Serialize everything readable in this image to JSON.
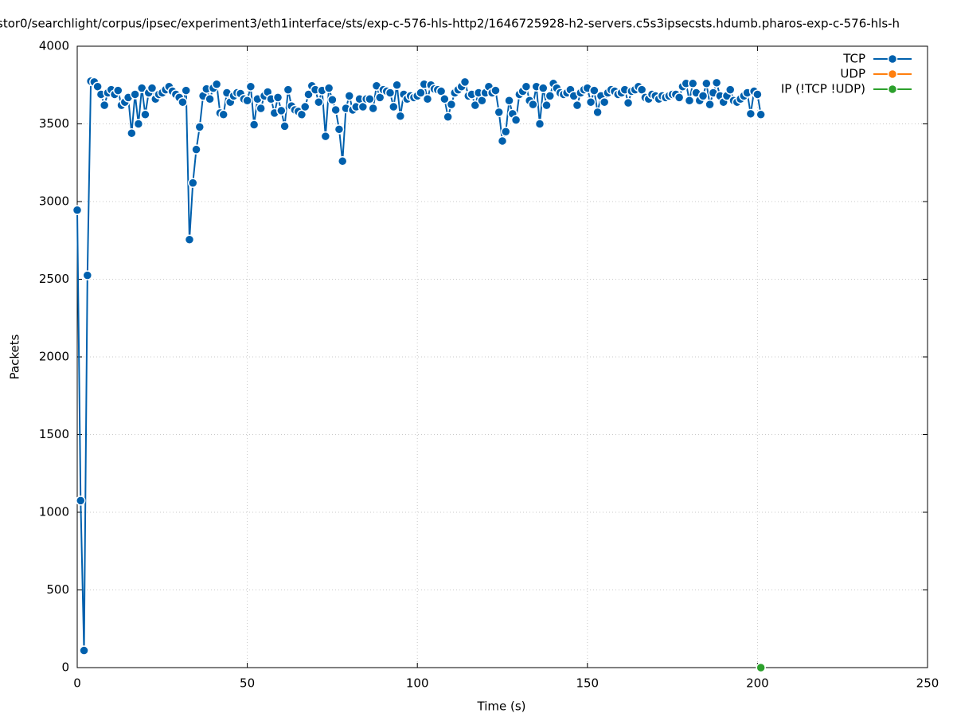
{
  "chart_data": {
    "type": "line",
    "title": "stor0/searchlight/corpus/ipsec/experiment3/eth1interface/sts/exp-c-576-hls-http2/1646725928-h2-servers.c5s3ipsecsts.hdumb.pharos-exp-c-576-hls-h",
    "x_label": "Time (s)",
    "y_label": "Packets",
    "xlim": [
      0,
      250
    ],
    "xticks": [
      0,
      50,
      100,
      150,
      200,
      250
    ],
    "ylim": [
      0,
      4000
    ],
    "yticks": [
      0,
      500,
      1000,
      1500,
      2000,
      2500,
      3000,
      3500,
      4000
    ],
    "grid": true,
    "legend": "top-right",
    "series": [
      {
        "name": "TCP",
        "color": "#0060ad",
        "x": [
          0,
          1,
          2,
          3,
          4,
          5,
          6,
          7,
          8,
          9,
          10,
          11,
          12,
          13,
          14,
          15,
          16,
          17,
          18,
          19,
          20,
          21,
          22,
          23,
          24,
          25,
          26,
          27,
          28,
          29,
          30,
          31,
          32,
          33,
          34,
          35,
          36,
          37,
          38,
          39,
          40,
          41,
          42,
          43,
          44,
          45,
          46,
          47,
          48,
          49,
          50,
          51,
          52,
          53,
          54,
          55,
          56,
          57,
          58,
          59,
          60,
          61,
          62,
          63,
          64,
          65,
          66,
          67,
          68,
          69,
          70,
          71,
          72,
          73,
          74,
          75,
          76,
          77,
          78,
          79,
          80,
          81,
          82,
          83,
          84,
          85,
          86,
          87,
          88,
          89,
          90,
          91,
          92,
          93,
          94,
          95,
          96,
          97,
          98,
          99,
          100,
          101,
          102,
          103,
          104,
          105,
          106,
          107,
          108,
          109,
          110,
          111,
          112,
          113,
          114,
          115,
          116,
          117,
          118,
          119,
          120,
          121,
          122,
          123,
          124,
          125,
          126,
          127,
          128,
          129,
          130,
          131,
          132,
          133,
          134,
          135,
          136,
          137,
          138,
          139,
          140,
          141,
          142,
          143,
          144,
          145,
          146,
          147,
          148,
          149,
          150,
          151,
          152,
          153,
          154,
          155,
          156,
          157,
          158,
          159,
          160,
          161,
          162,
          163,
          164,
          165,
          166,
          167,
          168,
          169,
          170,
          171,
          172,
          173,
          174,
          175,
          176,
          177,
          178,
          179,
          180,
          181,
          182,
          183,
          184,
          185,
          186,
          187,
          188,
          189,
          190,
          191,
          192,
          193,
          194,
          195,
          196,
          197,
          198,
          199,
          200,
          201
        ],
        "values": [
          2945,
          1075,
          110,
          2525,
          3775,
          3770,
          3740,
          3690,
          3620,
          3700,
          3720,
          3690,
          3715,
          3620,
          3640,
          3670,
          3440,
          3690,
          3500,
          3730,
          3560,
          3700,
          3730,
          3660,
          3690,
          3700,
          3720,
          3740,
          3710,
          3690,
          3670,
          3640,
          3715,
          2755,
          3120,
          3335,
          3480,
          3680,
          3725,
          3660,
          3730,
          3755,
          3570,
          3560,
          3700,
          3640,
          3680,
          3700,
          3695,
          3660,
          3650,
          3740,
          3495,
          3660,
          3600,
          3680,
          3705,
          3660,
          3570,
          3670,
          3585,
          3485,
          3720,
          3615,
          3590,
          3580,
          3560,
          3610,
          3690,
          3745,
          3720,
          3640,
          3715,
          3420,
          3730,
          3655,
          3590,
          3465,
          3260,
          3600,
          3680,
          3590,
          3610,
          3660,
          3610,
          3660,
          3660,
          3600,
          3745,
          3670,
          3720,
          3710,
          3700,
          3610,
          3750,
          3550,
          3690,
          3660,
          3680,
          3670,
          3680,
          3700,
          3755,
          3660,
          3750,
          3725,
          3720,
          3710,
          3660,
          3545,
          3625,
          3700,
          3720,
          3740,
          3770,
          3680,
          3690,
          3620,
          3700,
          3650,
          3700,
          3740,
          3700,
          3715,
          3575,
          3390,
          3450,
          3650,
          3565,
          3525,
          3690,
          3710,
          3740,
          3650,
          3625,
          3740,
          3500,
          3730,
          3620,
          3680,
          3760,
          3730,
          3700,
          3690,
          3700,
          3720,
          3680,
          3620,
          3700,
          3720,
          3730,
          3640,
          3715,
          3575,
          3680,
          3640,
          3700,
          3720,
          3710,
          3690,
          3700,
          3720,
          3635,
          3710,
          3720,
          3740,
          3720,
          3670,
          3660,
          3690,
          3680,
          3660,
          3680,
          3670,
          3680,
          3690,
          3690,
          3670,
          3740,
          3760,
          3650,
          3760,
          3700,
          3650,
          3680,
          3760,
          3625,
          3700,
          3765,
          3680,
          3640,
          3680,
          3720,
          3650,
          3640,
          3660,
          3680,
          3700,
          3565,
          3710,
          3690,
          3560
        ]
      },
      {
        "name": "UDP",
        "color": "#ff7f0e",
        "x": [],
        "values": []
      },
      {
        "name": "IP (!TCP  !UDP)",
        "color": "#2ca02c",
        "x": [
          201
        ],
        "values": [
          0
        ]
      }
    ]
  }
}
